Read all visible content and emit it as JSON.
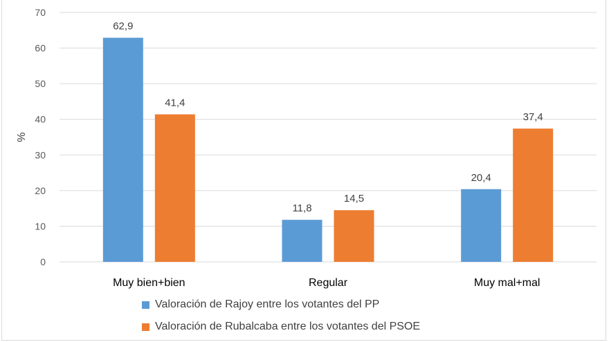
{
  "chart_data": {
    "type": "bar",
    "categories": [
      "Muy bien+bien",
      "Regular",
      "Muy mal+mal"
    ],
    "series": [
      {
        "name": "Valoración de Rajoy entre los votantes del PP",
        "values": [
          62.9,
          11.8,
          20.4
        ],
        "labels": [
          "62,9",
          "11,8",
          "20,4"
        ],
        "color": "#5b9bd5"
      },
      {
        "name": "Valoración de Rubalcaba entre los votantes del PSOE",
        "values": [
          41.4,
          14.5,
          37.4
        ],
        "labels": [
          "41,4",
          "14,5",
          "37,4"
        ],
        "color": "#ed7d31"
      }
    ],
    "ylabel": "%",
    "ylim": [
      0,
      70
    ],
    "yticks": [
      0,
      10,
      20,
      30,
      40,
      50,
      60,
      70
    ],
    "grid": true,
    "legend_position": "bottom"
  }
}
